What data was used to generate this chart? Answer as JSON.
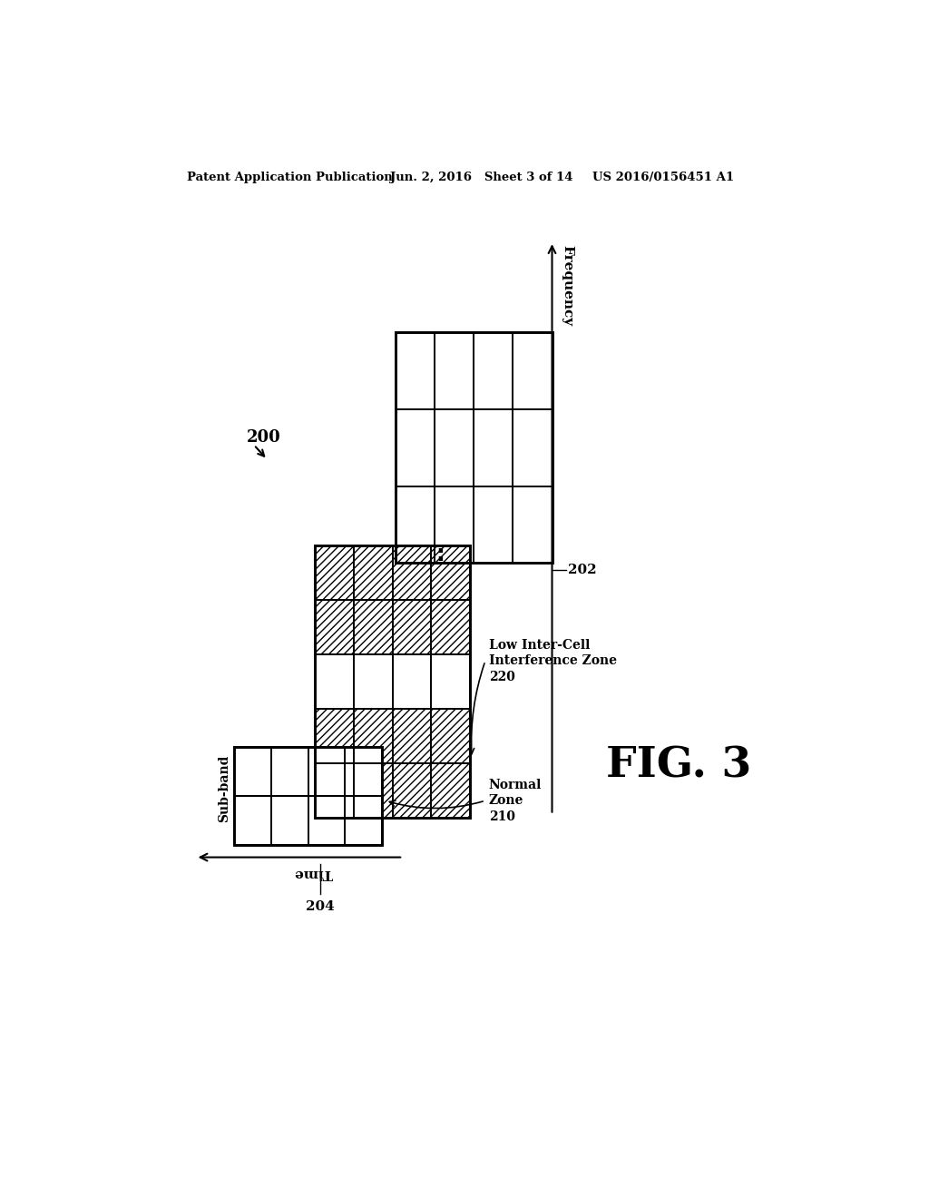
{
  "bg_color": "#ffffff",
  "header_left": "Patent Application Publication",
  "header_mid": "Jun. 2, 2016   Sheet 3 of 14",
  "header_right": "US 2016/0156451 A1",
  "fig_label": "FIG. 3",
  "ref_200": "200",
  "ref_202": "202",
  "ref_204": "204",
  "ref_210_line1": "Normal",
  "ref_210_line2": "Zone",
  "ref_210_line3": "210",
  "ref_220_line1": "Low Inter-Cell",
  "ref_220_line2": "Interference Zone",
  "ref_220_line3": "220",
  "label_freq": "Frequency",
  "label_time": "Time",
  "label_subband": "Sub-band",
  "grid_color": "#000000",
  "hatch_pattern": "////",
  "text_color": "#000000"
}
